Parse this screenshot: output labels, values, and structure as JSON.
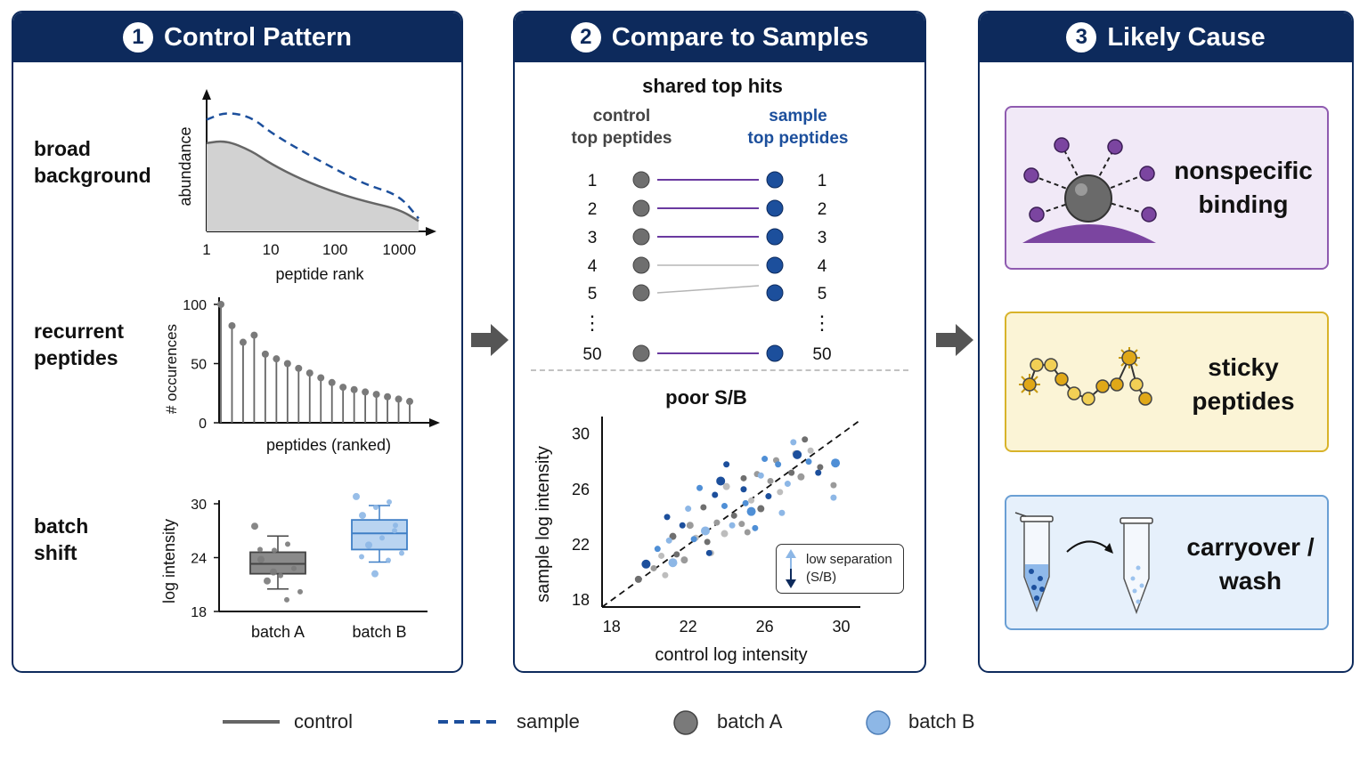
{
  "colors": {
    "navy": "#0d2a5c",
    "control_gray": "#666666",
    "sample_blue": "#1c4f9c",
    "batchA": "#7a7a7a",
    "batchB": "#8db7e6",
    "purple": "#7a3f9a",
    "yellow": "#e0b020",
    "light_blue": "#4f8fd6"
  },
  "panels": [
    {
      "number": "1",
      "title": "Control Pattern"
    },
    {
      "number": "2",
      "title": "Compare to Samples"
    },
    {
      "number": "3",
      "title": "Likely Cause"
    }
  ],
  "panel1": {
    "rows": [
      {
        "label": "broad\nbackground"
      },
      {
        "label": "recurrent\npeptides"
      },
      {
        "label": "batch\nshift"
      }
    ]
  },
  "panel2": {
    "shared_title": "shared top hits",
    "control_header": "control\ntop peptides",
    "sample_header": "sample\ntop peptides",
    "ranks": [
      "1",
      "2",
      "3",
      "4",
      "5",
      "50"
    ],
    "ellipsis": "⋮",
    "poor_title": "poor S/B",
    "note_line1": "low separation",
    "note_line2": "(S/B)"
  },
  "causes": [
    {
      "label": "nonspecific\nbinding"
    },
    {
      "label": "sticky\npeptides"
    },
    {
      "label": "carryover /\nwash"
    }
  ],
  "legend": {
    "control": "control",
    "sample": "sample",
    "batchA": "batch A",
    "batchB": "batch B"
  },
  "chart_data": [
    {
      "type": "area",
      "title": "",
      "xlabel": "peptide rank",
      "ylabel": "abundance",
      "x_scale": "log",
      "x_ticks": [
        "1",
        "10",
        "100",
        "1000"
      ],
      "series": [
        {
          "name": "control",
          "style": "solid filled",
          "x": [
            1,
            2,
            5,
            10,
            30,
            100,
            300,
            1000,
            2000
          ],
          "y": [
            0.68,
            0.7,
            0.62,
            0.52,
            0.4,
            0.3,
            0.23,
            0.17,
            0.08
          ]
        },
        {
          "name": "sample",
          "style": "dashed",
          "x": [
            1,
            2,
            5,
            10,
            30,
            100,
            300,
            1000,
            2000
          ],
          "y": [
            0.86,
            0.92,
            0.88,
            0.76,
            0.62,
            0.48,
            0.36,
            0.28,
            0.1
          ]
        }
      ]
    },
    {
      "type": "scatter",
      "title": "",
      "subtype": "lollipop",
      "xlabel": "peptides (ranked)",
      "ylabel": "# occurences",
      "y_ticks": [
        "0",
        "50",
        "100"
      ],
      "ylim": [
        0,
        100
      ],
      "values": [
        100,
        82,
        68,
        74,
        58,
        54,
        50,
        46,
        42,
        38,
        34,
        30,
        28,
        26,
        24,
        22,
        20,
        18
      ]
    },
    {
      "type": "box",
      "title": "",
      "ylabel": "log intensity",
      "y_ticks": [
        "18",
        "24",
        "30"
      ],
      "ylim": [
        18,
        30
      ],
      "categories": [
        "batch A",
        "batch B"
      ],
      "boxes": [
        {
          "name": "batch A",
          "whisker_low": 20.5,
          "q1": 22.2,
          "median": 23.3,
          "q3": 24.6,
          "whisker_high": 26.4,
          "points": [
            27.5,
            25.5,
            24.8,
            23.8,
            22.8,
            22.0,
            21.4,
            20.2,
            19.3,
            22.4,
            24.9
          ]
        },
        {
          "name": "batch B",
          "whisker_low": 23.5,
          "q1": 24.9,
          "median": 26.7,
          "q3": 28.2,
          "whisker_high": 29.8,
          "points": [
            30.8,
            30.2,
            29.6,
            28.7,
            27.6,
            26.2,
            25.4,
            24.5,
            23.7,
            22.2,
            24.1,
            27.0
          ]
        }
      ]
    },
    {
      "type": "scatter",
      "title": "",
      "xlabel": "control log intensity",
      "ylabel": "sample log intensity",
      "xlim": [
        17.5,
        31
      ],
      "ylim": [
        17.5,
        31
      ],
      "x_ticks": [
        "18",
        "22",
        "26",
        "30"
      ],
      "y_ticks": [
        "18",
        "22",
        "26",
        "30"
      ],
      "diagonal": "y = x dashed",
      "series": [
        {
          "name": "batch A",
          "points": [
            [
              19.4,
              19.5
            ],
            [
              20.2,
              20.3
            ],
            [
              20.8,
              19.8
            ],
            [
              21.4,
              21.3
            ],
            [
              21.8,
              20.9
            ],
            [
              22.4,
              22.5
            ],
            [
              23.0,
              22.2
            ],
            [
              23.5,
              23.6
            ],
            [
              23.9,
              22.8
            ],
            [
              24.4,
              24.1
            ],
            [
              24.8,
              23.5
            ],
            [
              25.3,
              25.2
            ],
            [
              25.8,
              24.6
            ],
            [
              26.3,
              26.6
            ],
            [
              26.8,
              25.8
            ],
            [
              27.4,
              27.2
            ],
            [
              27.9,
              26.9
            ],
            [
              28.4,
              28.8
            ],
            [
              28.9,
              27.6
            ],
            [
              29.6,
              26.3
            ],
            [
              24.0,
              26.2
            ],
            [
              22.8,
              24.7
            ],
            [
              25.6,
              27.1
            ],
            [
              23.2,
              21.4
            ],
            [
              21.2,
              22.6
            ],
            [
              26.6,
              28.1
            ],
            [
              27.6,
              28.6
            ],
            [
              24.9,
              26.8
            ],
            [
              22.1,
              23.4
            ],
            [
              20.6,
              21.2
            ],
            [
              28.1,
              29.6
            ],
            [
              25.1,
              22.9
            ]
          ]
        },
        {
          "name": "batch B",
          "points": [
            [
              19.8,
              20.6
            ],
            [
              20.4,
              21.7
            ],
            [
              21.0,
              22.3
            ],
            [
              21.7,
              23.4
            ],
            [
              22.3,
              22.4
            ],
            [
              22.9,
              23.0
            ],
            [
              23.4,
              25.6
            ],
            [
              23.9,
              24.8
            ],
            [
              24.3,
              23.4
            ],
            [
              24.9,
              26.0
            ],
            [
              25.3,
              24.4
            ],
            [
              25.8,
              27.0
            ],
            [
              26.2,
              25.5
            ],
            [
              26.7,
              27.8
            ],
            [
              27.2,
              26.4
            ],
            [
              27.7,
              28.5
            ],
            [
              28.3,
              28.0
            ],
            [
              29.6,
              25.4
            ],
            [
              24.0,
              27.8
            ],
            [
              22.6,
              26.1
            ],
            [
              21.2,
              20.7
            ],
            [
              23.1,
              21.4
            ],
            [
              25.5,
              23.2
            ],
            [
              26.9,
              24.3
            ],
            [
              28.8,
              27.2
            ],
            [
              29.7,
              27.9
            ],
            [
              22.0,
              24.6
            ],
            [
              20.9,
              24.0
            ],
            [
              26.0,
              28.2
            ],
            [
              27.5,
              29.4
            ],
            [
              23.7,
              26.6
            ],
            [
              25.0,
              25.0
            ]
          ]
        }
      ],
      "annotation": "low separation (S/B)"
    }
  ]
}
